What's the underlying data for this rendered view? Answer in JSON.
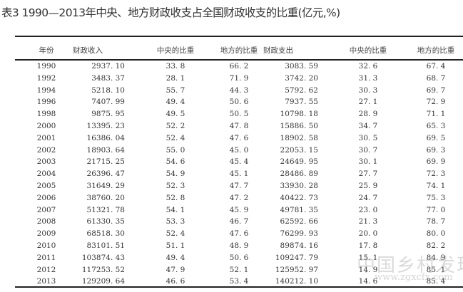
{
  "title": "表3 1990—2013年中央、地方财政收支占全国财政收支的比重(亿元,%)",
  "headers": [
    "年份",
    "财政收入",
    "中央的比重",
    "地方的比重",
    "财政支出",
    "中央的比重",
    "地方的比重"
  ],
  "rows": [
    [
      "1990",
      "2937. 10",
      "33. 8",
      "66. 2",
      "3083. 59",
      "32. 6",
      "67. 4"
    ],
    [
      "1992",
      "3483. 37",
      "28. 1",
      "71. 9",
      "3742. 20",
      "31. 3",
      "68. 7"
    ],
    [
      "1994",
      "5218. 10",
      "55. 7",
      "44. 3",
      "5792. 62",
      "30. 3",
      "69. 7"
    ],
    [
      "1996",
      "7407. 99",
      "49. 4",
      "50. 6",
      "7937. 55",
      "27. 1",
      "72. 9"
    ],
    [
      "1998",
      "9875. 95",
      "49. 5",
      "50. 5",
      "10798. 18",
      "28. 9",
      "71. 1"
    ],
    [
      "2000",
      "13395. 23",
      "52. 2",
      "47. 8",
      "15886. 50",
      "34. 7",
      "65. 3"
    ],
    [
      "2001",
      "16386. 04",
      "52. 4",
      "47. 6",
      "18902. 58",
      "30. 5",
      "69. 5"
    ],
    [
      "2002",
      "18903. 64",
      "55. 0",
      "45. 0",
      "22053. 15",
      "30. 7",
      "69. 3"
    ],
    [
      "2003",
      "21715. 25",
      "54. 6",
      "45. 4",
      "24649. 95",
      "30. 1",
      "69. 9"
    ],
    [
      "2004",
      "26396. 47",
      "54. 9",
      "45. 1",
      "28486. 89",
      "27. 7",
      "72. 3"
    ],
    [
      "2005",
      "31649. 29",
      "52. 3",
      "47. 7",
      "33930. 28",
      "25. 9",
      "74. 1"
    ],
    [
      "2006",
      "38760. 20",
      "52. 8",
      "47. 2",
      "40422. 73",
      "24. 7",
      "75. 3"
    ],
    [
      "2007",
      "51321. 78",
      "54. 1",
      "45. 9",
      "49781. 35",
      "23. 0",
      "77. 0"
    ],
    [
      "2008",
      "61330. 35",
      "53. 3",
      "46. 7",
      "62592. 66",
      "21. 3",
      "78. 7"
    ],
    [
      "2009",
      "68518. 30",
      "52. 4",
      "47. 6",
      "76299. 93",
      "20. 0",
      "80. 0"
    ],
    [
      "2010",
      "83101. 51",
      "51. 1",
      "48. 9",
      "89874. 16",
      "17. 8",
      "82. 2"
    ],
    [
      "2011",
      "103874. 43",
      "49. 4",
      "50. 6",
      "109247. 79",
      "15. 1",
      "84. 9"
    ],
    [
      "2012",
      "117253. 52",
      "47. 9",
      "52. 1",
      "125952. 97",
      "14. 9",
      "85. 1"
    ],
    [
      "2013",
      "129209. 64",
      "46. 6",
      "53. 4",
      "140212. 10",
      "14. 6",
      "85. 4"
    ]
  ],
  "watermark": {
    "name": "中国乡村发现网",
    "url": "www.zgxcfx.com"
  }
}
